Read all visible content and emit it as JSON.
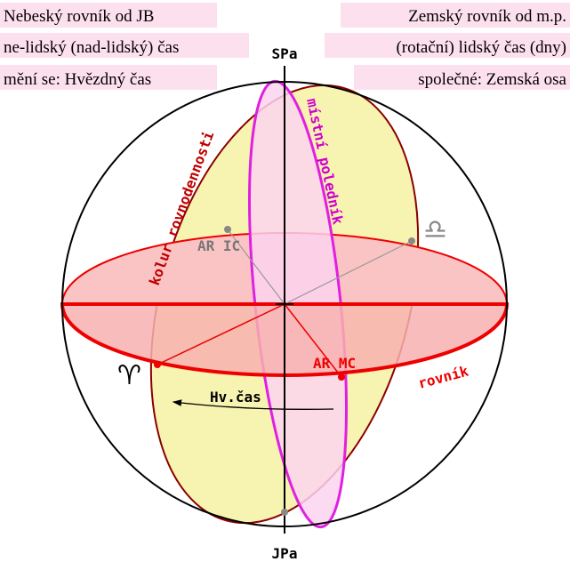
{
  "notes_left": [
    "Nebeský rovník od JB",
    "ne-lidský (nad-lidský) čas",
    "mění se: Hvězdný čas"
  ],
  "notes_right": [
    "Zemský rovník od m.p.",
    "(rotační) lidský čas (dny)",
    "společné: Zemská osa"
  ],
  "labels": {
    "north_pole": "SPa",
    "south_pole": "JPa",
    "colure": "kolur rovnodennosti",
    "meridian": "místní poledník",
    "ar_ic": "AR IC",
    "ar_mc": "AR MC",
    "equator": "rovník",
    "sidereal_time": "Hv.čas",
    "aries": "♈",
    "libra": "♎"
  }
}
